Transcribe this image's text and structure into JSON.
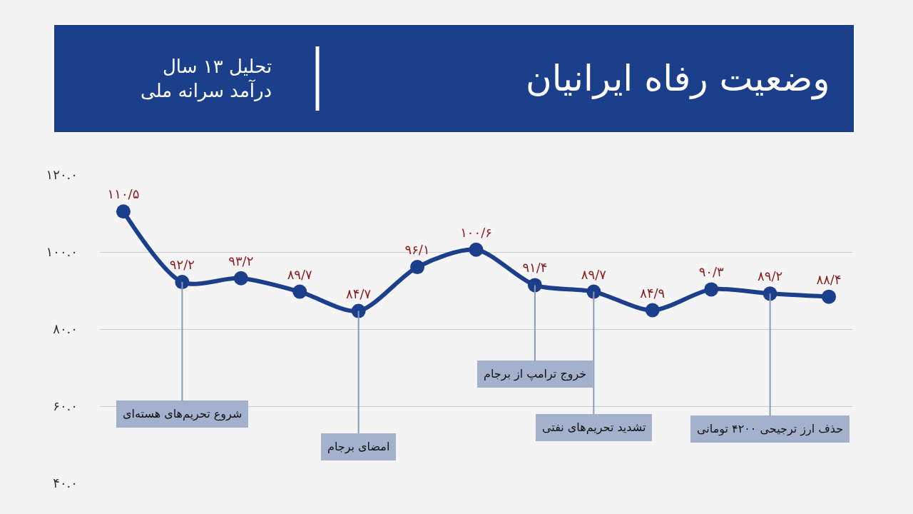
{
  "chart_data": {
    "type": "line",
    "title": "وضعیت رفاه ایرانیان",
    "subtitle": "تحلیل ۱۳ سال\nدرآمد سرانه ملی",
    "categories": [
      null,
      null,
      null,
      null,
      null,
      null,
      null,
      null,
      null,
      null,
      null,
      null,
      null
    ],
    "series": [
      {
        "color": "#1c3f8c",
        "values": [
          110.5,
          92.2,
          93.2,
          89.7,
          84.7,
          96.1,
          100.6,
          91.4,
          89.7,
          84.9,
          90.3,
          89.2,
          88.4
        ],
        "value_labels": [
          "۱۱۰/۵",
          "۹۲/۲",
          "۹۳/۲",
          "۸۹/۷",
          "۸۴/۷",
          "۹۶/۱",
          "۱۰۰/۶",
          "۹۱/۴",
          "۸۹/۷",
          "۸۴/۹",
          "۹۰/۳",
          "۸۹/۲",
          "۸۸/۴"
        ]
      }
    ],
    "ylim": [
      40,
      120
    ],
    "yticks": [
      {
        "value": 40,
        "label": "۴۰.۰"
      },
      {
        "value": 60,
        "label": "۶۰.۰"
      },
      {
        "value": 80,
        "label": "۸۰.۰"
      },
      {
        "value": 100,
        "label": "۱۰۰.۰"
      },
      {
        "value": 120,
        "label": "۱۲۰.۰"
      }
    ],
    "grid": "y",
    "marker": "circle",
    "line_style": "solid",
    "annotations": [
      {
        "text": "شروع تحریم‌های هسته‌ای",
        "y": 92.2
      },
      {
        "text": "امضای برجام",
        "y": 84.7
      },
      {
        "text": "خروج ترامپ از برجام",
        "y": 91.4
      },
      {
        "text": "تشدید تحریم‌های نفتی",
        "y": 89.7
      },
      {
        "text": "حذف ارز ترجیحی ۴۲۰۰ تومانی",
        "y": 89.2
      }
    ]
  }
}
